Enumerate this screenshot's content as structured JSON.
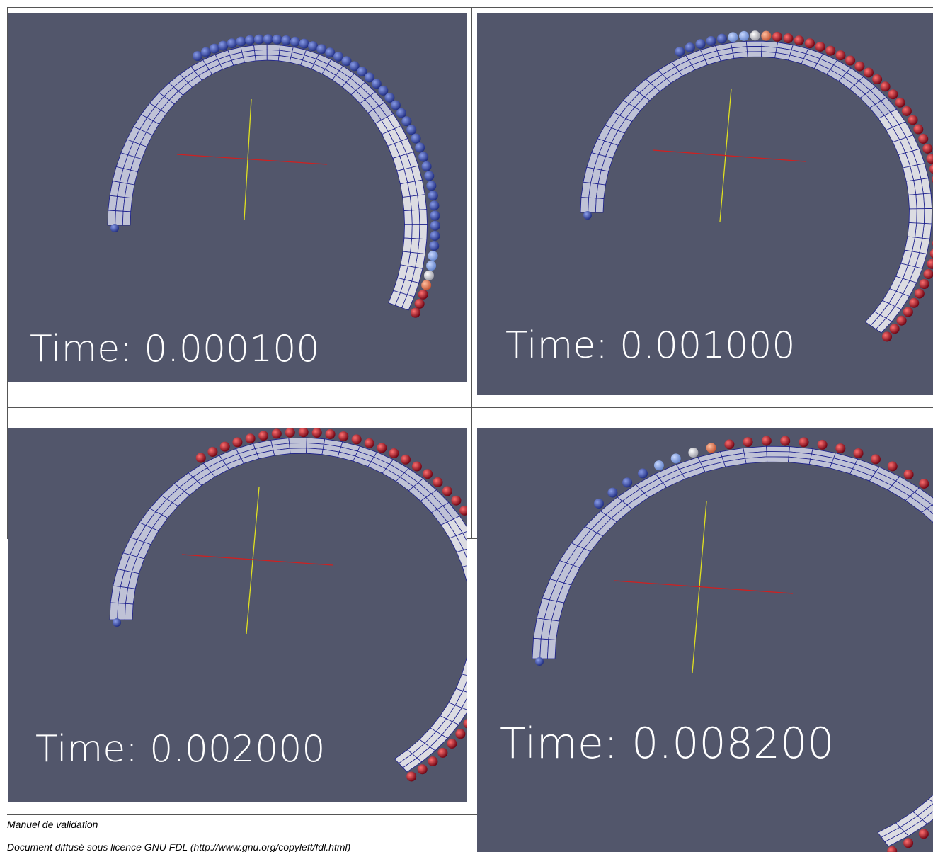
{
  "panels": [
    {
      "time_label": "Time: 0.000100"
    },
    {
      "time_label": "Time: 0.001000"
    },
    {
      "time_label": "Time: 0.002000"
    },
    {
      "time_label": "Time: 0.008200"
    }
  ],
  "footer": {
    "title": "Manuel de validation",
    "license": "Document diffusé sous licence GNU FDL (http://www.gnu.org/copyleft/fdl.html)"
  }
}
